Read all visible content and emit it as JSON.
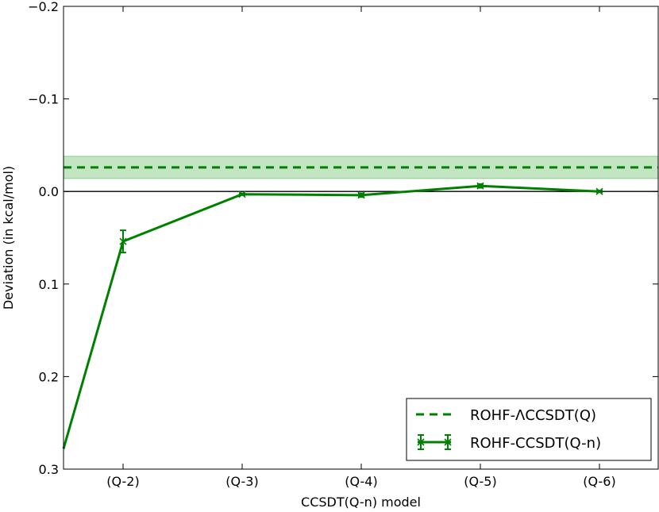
{
  "chart_data": {
    "type": "line",
    "title": "",
    "xlabel": "CCSDT(Q-n) model",
    "ylabel": "Deviation (in kcal/mol)",
    "categories": [
      "(Q-2)",
      "(Q-3)",
      "(Q-4)",
      "(Q-5)",
      "(Q-6)"
    ],
    "x_range_description": "categorical; first category slightly right of left axis edge",
    "ylim": [
      -0.2,
      0.3
    ],
    "y_axis_inverted": true,
    "y_ticks": [
      -0.2,
      -0.1,
      0.0,
      0.1,
      0.2,
      0.3
    ],
    "y_tick_labels": [
      "−0.2",
      "−0.1",
      "0.0",
      "0.1",
      "0.2",
      "0.3"
    ],
    "zero_line": true,
    "grid": false,
    "legend_position": "lower-right",
    "series": [
      {
        "name": "ROHF-ΛCCSDT(Q)",
        "kind": "horizontal-reference",
        "style": "dashed",
        "color": "#008000",
        "value": -0.026,
        "band": [
          -0.038,
          -0.014
        ],
        "band_color": "#8fd08f"
      },
      {
        "name": "ROHF-CCSDT(Q-n)",
        "kind": "line-with-errorbars",
        "style": "solid",
        "marker": "x",
        "color": "#008000",
        "leading_point": {
          "category_offset": -0.5,
          "value": 0.278
        },
        "values": [
          0.054,
          0.003,
          0.004,
          -0.006,
          0.0
        ],
        "errors": [
          0.012,
          0.001,
          0.002,
          0.002,
          0.001
        ]
      }
    ]
  }
}
